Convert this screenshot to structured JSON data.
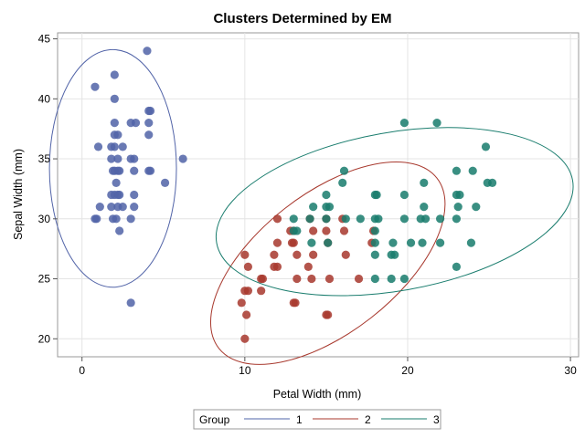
{
  "chart_data": {
    "type": "scatter",
    "title": "Clusters Determined by EM",
    "xlabel": "Petal Width (mm)",
    "ylabel": "Sepal Width (mm)",
    "xlim": [
      -1.5,
      30.5
    ],
    "ylim": [
      18.5,
      45.5
    ],
    "xticks": [
      0,
      10,
      20,
      30
    ],
    "yticks": [
      20,
      25,
      30,
      35,
      40,
      45
    ],
    "grid": true,
    "legend": {
      "title": "Group",
      "placement": "bottom"
    },
    "series": [
      {
        "name": "1",
        "color": "#5264A8",
        "points": [
          [
            4,
            44
          ],
          [
            0.8,
            41
          ],
          [
            2,
            42
          ],
          [
            2,
            40
          ],
          [
            1,
            36
          ],
          [
            2,
            38
          ],
          [
            3,
            38
          ],
          [
            3.3,
            38
          ],
          [
            4.1,
            39
          ],
          [
            4.2,
            39
          ],
          [
            4.1,
            38
          ],
          [
            2,
            37
          ],
          [
            2.2,
            37
          ],
          [
            4.1,
            37
          ],
          [
            2,
            36
          ],
          [
            1.8,
            36
          ],
          [
            2.5,
            36
          ],
          [
            6.2,
            35
          ],
          [
            1.8,
            35
          ],
          [
            2.2,
            35
          ],
          [
            3,
            35
          ],
          [
            3.2,
            35
          ],
          [
            2,
            34
          ],
          [
            2.2,
            34
          ],
          [
            1.9,
            34
          ],
          [
            2.3,
            34
          ],
          [
            3.2,
            34
          ],
          [
            4.2,
            34
          ],
          [
            4.1,
            34
          ],
          [
            2.1,
            33
          ],
          [
            5.1,
            33
          ],
          [
            2,
            32
          ],
          [
            2.2,
            32
          ],
          [
            1.8,
            32
          ],
          [
            2.3,
            32
          ],
          [
            3.2,
            32
          ],
          [
            1.8,
            31
          ],
          [
            2.2,
            31
          ],
          [
            2.5,
            31
          ],
          [
            1.1,
            31
          ],
          [
            3.2,
            31
          ],
          [
            0.8,
            30
          ],
          [
            0.9,
            30
          ],
          [
            1.9,
            30
          ],
          [
            2.1,
            30
          ],
          [
            3,
            30
          ],
          [
            2.3,
            29
          ],
          [
            3,
            23
          ]
        ],
        "ellipse": {
          "cx": 1.9,
          "cy": 34.2,
          "rx": 3.9,
          "ry": 9.9
        }
      },
      {
        "name": "2",
        "color": "#A8392E",
        "points": [
          [
            10,
            27
          ],
          [
            10.2,
            26
          ],
          [
            10,
            24
          ],
          [
            10.2,
            24
          ],
          [
            9.8,
            23
          ],
          [
            10.1,
            22
          ],
          [
            10,
            20
          ],
          [
            11,
            25
          ],
          [
            11.1,
            25
          ],
          [
            11,
            24
          ],
          [
            12,
            28
          ],
          [
            12,
            30
          ],
          [
            11.8,
            27
          ],
          [
            12,
            26
          ],
          [
            11.8,
            26
          ],
          [
            13,
            29
          ],
          [
            12.8,
            29
          ],
          [
            13,
            28
          ],
          [
            12.9,
            28
          ],
          [
            13.2,
            27
          ],
          [
            13.2,
            25
          ],
          [
            13,
            23
          ],
          [
            13.1,
            23
          ],
          [
            14,
            30
          ],
          [
            14.2,
            29
          ],
          [
            14.2,
            27
          ],
          [
            13.9,
            26
          ],
          [
            14.1,
            25
          ],
          [
            15,
            30
          ],
          [
            15,
            29
          ],
          [
            15.1,
            28
          ],
          [
            15.2,
            25
          ],
          [
            15,
            22
          ],
          [
            15.1,
            22
          ],
          [
            16,
            30
          ],
          [
            16.1,
            29
          ],
          [
            16.2,
            27
          ],
          [
            17,
            25
          ],
          [
            17.8,
            28
          ],
          [
            17.9,
            29
          ]
        ],
        "ellipse": {
          "cx": 15.1,
          "cy": 26.3,
          "rx": 8.5,
          "ry": 5.8,
          "angle": 38
        }
      },
      {
        "name": "3",
        "color": "#1A7D6E",
        "points": [
          [
            19.8,
            38
          ],
          [
            21.8,
            38
          ],
          [
            24.8,
            36
          ],
          [
            16.1,
            34
          ],
          [
            23,
            34
          ],
          [
            24,
            34
          ],
          [
            16,
            33
          ],
          [
            21,
            33
          ],
          [
            25.2,
            33
          ],
          [
            24.9,
            33
          ],
          [
            15,
            32
          ],
          [
            18,
            32
          ],
          [
            18.1,
            32
          ],
          [
            19.8,
            32
          ],
          [
            23,
            32
          ],
          [
            23.2,
            32
          ],
          [
            14.2,
            31
          ],
          [
            15,
            31
          ],
          [
            15.2,
            31
          ],
          [
            21,
            31
          ],
          [
            23.1,
            31
          ],
          [
            24.2,
            31
          ],
          [
            13,
            29
          ],
          [
            13.2,
            29
          ],
          [
            13,
            30
          ],
          [
            14,
            30
          ],
          [
            15,
            30
          ],
          [
            16.2,
            30
          ],
          [
            17.1,
            30
          ],
          [
            18,
            30
          ],
          [
            18.2,
            30
          ],
          [
            19.8,
            30
          ],
          [
            20.8,
            30
          ],
          [
            21.1,
            30
          ],
          [
            22,
            30
          ],
          [
            23,
            30
          ],
          [
            14.1,
            28
          ],
          [
            15.1,
            28
          ],
          [
            18,
            28
          ],
          [
            19.1,
            28
          ],
          [
            20.2,
            28
          ],
          [
            20.9,
            28
          ],
          [
            22,
            28
          ],
          [
            23.9,
            28
          ],
          [
            18,
            27
          ],
          [
            19,
            27
          ],
          [
            19.2,
            27
          ],
          [
            23,
            26
          ],
          [
            18,
            25
          ],
          [
            19,
            25
          ],
          [
            19.8,
            25
          ],
          [
            18,
            29
          ]
        ],
        "ellipse": {
          "cx": 19.2,
          "cy": 30.6,
          "rx": 11.1,
          "ry": 6.6,
          "angle": 10
        }
      }
    ]
  }
}
